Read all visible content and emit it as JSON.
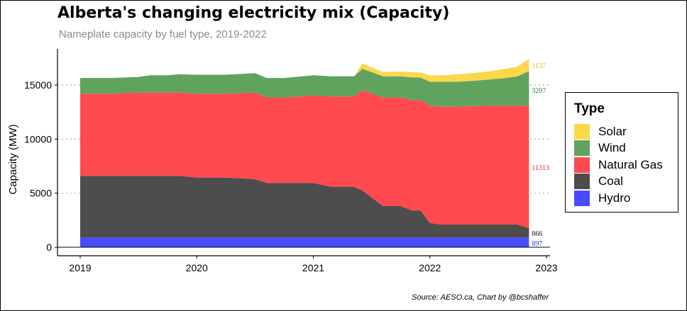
{
  "title": "Alberta's changing electricity mix (Capacity)",
  "subtitle": "Nameplate capacity by fuel type, 2019-2022",
  "caption": "Source: AESO.ca, Chart by @bcshaffer",
  "chart_data": {
    "type": "area",
    "stacked": true,
    "ylabel": "Capacity (MW)",
    "xlabel": "",
    "x_ticks": [
      "2019",
      "2020",
      "2021",
      "2022",
      "2023"
    ],
    "y_ticks": [
      0,
      5000,
      10000,
      15000
    ],
    "xlim": [
      2019,
      2023
    ],
    "ylim": [
      0,
      17500
    ],
    "grid": "horizontal dotted",
    "legend_position": "right",
    "legend_title": "Type",
    "x": [
      2019.0,
      2019.25,
      2019.5,
      2019.6,
      2019.75,
      2019.85,
      2020.0,
      2020.25,
      2020.5,
      2020.6,
      2020.75,
      2021.0,
      2021.15,
      2021.35,
      2021.42,
      2021.6,
      2021.75,
      2021.85,
      2021.92,
      2022.0,
      2022.1,
      2022.25,
      2022.5,
      2022.65,
      2022.75,
      2022.85
    ],
    "series": [
      {
        "name": "Hydro",
        "color": "#4a4aff",
        "end_label": "897",
        "values": [
          897,
          897,
          897,
          897,
          897,
          897,
          897,
          897,
          897,
          897,
          897,
          897,
          897,
          897,
          897,
          897,
          897,
          897,
          897,
          897,
          897,
          897,
          897,
          897,
          897,
          897
        ]
      },
      {
        "name": "Coal",
        "color": "#4d4d4d",
        "end_label": "866",
        "values": [
          5700,
          5700,
          5700,
          5700,
          5700,
          5700,
          5550,
          5550,
          5400,
          5050,
          5050,
          5050,
          4700,
          4700,
          4350,
          2900,
          2900,
          2500,
          2500,
          1350,
          1200,
          1200,
          1200,
          1200,
          1200,
          866
        ]
      },
      {
        "name": "Natural Gas",
        "color": "#ff4a4f",
        "end_label": "11313",
        "values": [
          7600,
          7600,
          7700,
          7700,
          7700,
          7700,
          7750,
          7750,
          8000,
          7900,
          7900,
          8100,
          8350,
          8350,
          9300,
          10050,
          10050,
          10200,
          10200,
          10850,
          10900,
          10900,
          11000,
          11000,
          11000,
          11313
        ]
      },
      {
        "name": "Wind",
        "color": "#5fa35f",
        "end_label": "3207",
        "values": [
          1450,
          1450,
          1450,
          1600,
          1600,
          1700,
          1750,
          1750,
          1800,
          1800,
          1800,
          1850,
          1850,
          1850,
          1950,
          1950,
          1950,
          2100,
          2100,
          2200,
          2300,
          2300,
          2400,
          2550,
          2700,
          3207
        ]
      },
      {
        "name": "Solar",
        "color": "#fbd84a",
        "end_label": "1137",
        "values": [
          0,
          0,
          0,
          0,
          0,
          0,
          0,
          0,
          0,
          0,
          0,
          0,
          0,
          0,
          500,
          400,
          450,
          500,
          450,
          600,
          600,
          700,
          750,
          850,
          900,
          1137
        ]
      }
    ]
  }
}
